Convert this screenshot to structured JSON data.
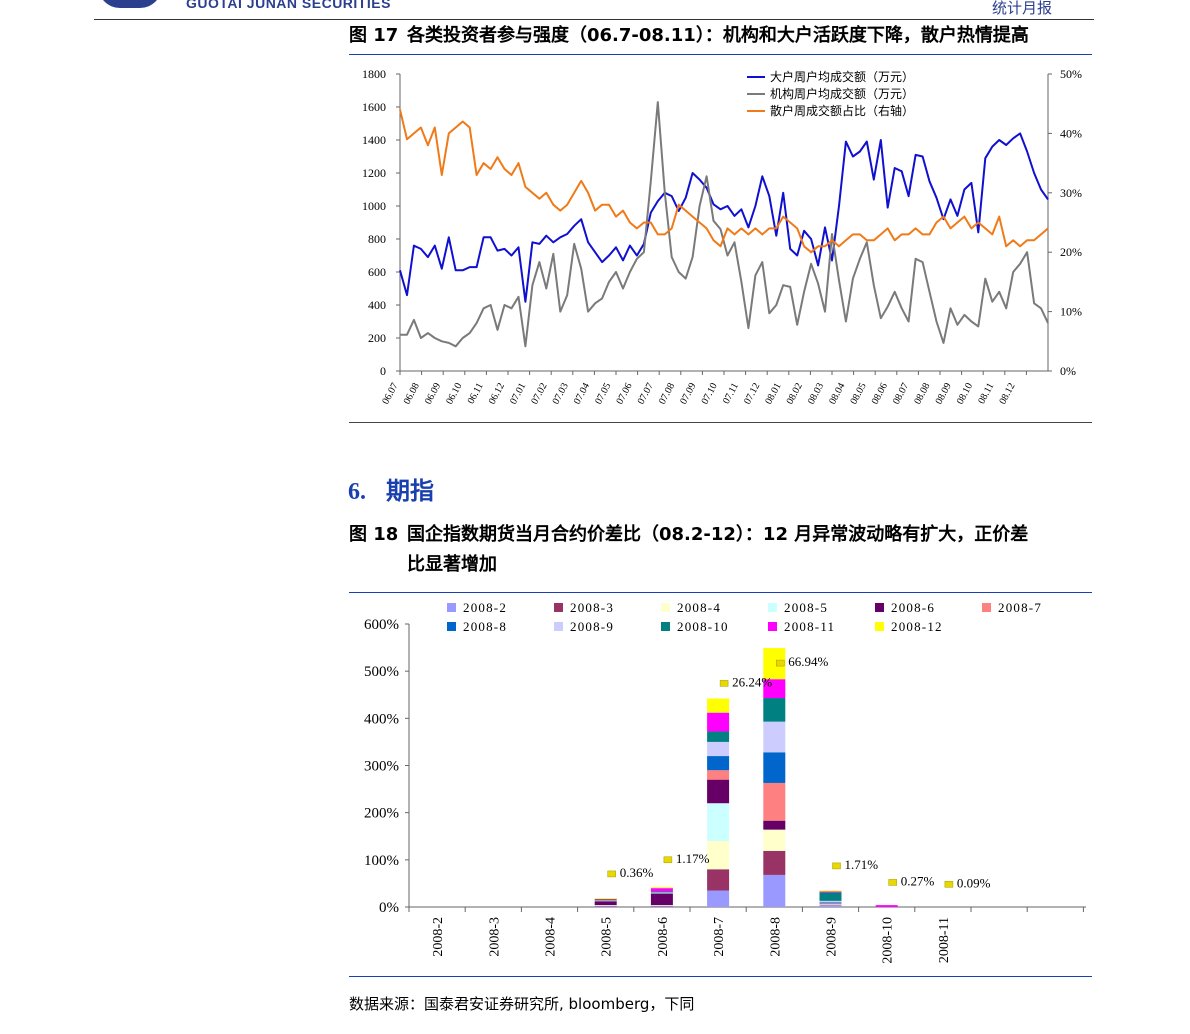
{
  "header": {
    "brand": "GUOTAI JUNAN SECURITIES",
    "report_type": "统计月报",
    "brand_color": "#2b3f8f"
  },
  "figure17": {
    "label": "图 17",
    "title": "各类投资者参与强度（06.7-08.11）：机构和大户活跃度下降，散户热情提高"
  },
  "section": {
    "number": "6.",
    "title": "期指",
    "color": "#1a3fae"
  },
  "figure18": {
    "label": "图 18",
    "title_line1": "国企指数期货当月合约价差比（08.2-12）：12 月异常波动略有扩大，正价差",
    "title_line2": "比显著增加"
  },
  "source": "数据来源：国泰君安证券研究所, bloomberg，下同",
  "chart_data": [
    {
      "type": "line",
      "ylim": [
        0,
        1800
      ],
      "y_ticks": [
        "0",
        "200",
        "400",
        "600",
        "800",
        "1000",
        "1200",
        "1400",
        "1600",
        "1800"
      ],
      "y2lim": [
        0,
        50
      ],
      "y2_ticks": [
        "0%",
        "10%",
        "20%",
        "30%",
        "40%",
        "50%"
      ],
      "x_ticks": [
        "06.07",
        "06.08",
        "06.09",
        "06.10",
        "06.11",
        "06.12",
        "07.01",
        "07.02",
        "07.03",
        "07.04",
        "07.05",
        "07.06",
        "07.07",
        "07.08",
        "07.09",
        "07.10",
        "07.11",
        "07.12",
        "08.01",
        "08.02",
        "08.03",
        "08.04",
        "08.05",
        "08.06",
        "08.07",
        "08.08",
        "08.09",
        "08.10",
        "08.11",
        "08.12"
      ],
      "legend_position": "top",
      "series": [
        {
          "name": "大户周户均成交额（万元）",
          "axis": "left",
          "color": "#1010d0",
          "values": [
            610,
            460,
            760,
            740,
            690,
            760,
            620,
            810,
            610,
            610,
            630,
            630,
            810,
            810,
            730,
            740,
            700,
            750,
            420,
            780,
            770,
            820,
            780,
            810,
            830,
            880,
            920,
            780,
            720,
            660,
            700,
            750,
            670,
            760,
            700,
            770,
            960,
            1030,
            1080,
            1060,
            970,
            1050,
            1200,
            1160,
            1110,
            1010,
            980,
            1000,
            940,
            980,
            870,
            1000,
            1180,
            1060,
            820,
            1080,
            740,
            700,
            850,
            800,
            640,
            870,
            670,
            1000,
            1390,
            1300,
            1330,
            1390,
            1160,
            1400,
            990,
            1230,
            1210,
            1060,
            1310,
            1300,
            1150,
            1050,
            920,
            1040,
            940,
            1100,
            1140,
            840,
            1290,
            1360,
            1400,
            1370,
            1410,
            1440,
            1330,
            1200,
            1100,
            1040
          ]
        },
        {
          "name": "机构周户均成交额（万元）",
          "axis": "left",
          "color": "#7a7a7a",
          "values": [
            220,
            220,
            310,
            200,
            230,
            200,
            180,
            170,
            150,
            200,
            230,
            290,
            380,
            400,
            250,
            400,
            380,
            450,
            150,
            520,
            660,
            500,
            710,
            360,
            460,
            770,
            620,
            360,
            410,
            440,
            540,
            600,
            500,
            600,
            680,
            720,
            1150,
            1630,
            1080,
            690,
            600,
            560,
            690,
            1000,
            1180,
            910,
            860,
            700,
            780,
            540,
            260,
            580,
            660,
            350,
            400,
            520,
            510,
            280,
            480,
            650,
            530,
            360,
            830,
            550,
            300,
            560,
            680,
            780,
            520,
            320,
            390,
            480,
            380,
            300,
            680,
            660,
            480,
            300,
            170,
            380,
            280,
            340,
            300,
            270,
            560,
            420,
            480,
            380,
            600,
            650,
            720,
            410,
            380,
            290
          ]
        },
        {
          "name": "散户周成交额占比（右轴）",
          "axis": "right",
          "color": "#f07a18",
          "values": [
            44,
            39,
            40,
            41,
            38,
            41,
            33,
            40,
            41,
            42,
            41,
            33,
            35,
            34,
            36,
            34,
            33,
            35,
            31,
            30,
            29,
            30,
            28,
            27,
            28,
            30,
            32,
            30,
            27,
            28,
            28,
            26,
            27,
            25,
            24,
            25,
            25,
            23,
            23,
            24,
            28,
            27,
            26,
            25,
            24,
            22,
            21,
            24,
            23,
            24,
            23,
            24,
            23,
            24,
            24,
            26,
            25,
            24,
            21,
            20,
            21,
            21,
            22,
            21,
            22,
            23,
            23,
            22,
            22,
            23,
            24,
            22,
            23,
            23,
            24,
            23,
            23,
            25,
            26,
            24,
            25,
            26,
            24,
            25,
            24,
            23,
            26,
            21,
            22,
            21,
            22,
            22,
            23,
            24
          ]
        }
      ]
    },
    {
      "type": "bar",
      "stacked": true,
      "ylim": [
        0,
        6
      ],
      "y_ticks": [
        "0%",
        "100%",
        "200%",
        "300%",
        "400%",
        "500%",
        "600%"
      ],
      "categories": [
        "2008-2",
        "2008-3",
        "2008-4",
        "2008-5",
        "2008-6",
        "2008-7",
        "2008-8",
        "2008-9",
        "2008-10",
        "2008-11"
      ],
      "legend_position": "top",
      "series": [
        {
          "name": "2008-2",
          "color": "#9999ff",
          "values": [
            0,
            0,
            0,
            0.01,
            0.01,
            0.35,
            0.68,
            0.03,
            0,
            0
          ]
        },
        {
          "name": "2008-3",
          "color": "#993366",
          "values": [
            0,
            0,
            0,
            0.01,
            0.01,
            0.45,
            0.51,
            0.01,
            0,
            0
          ]
        },
        {
          "name": "2008-4",
          "color": "#ffffcc",
          "values": [
            0,
            0,
            0,
            0.01,
            0.01,
            0.6,
            0.45,
            0.01,
            0,
            0
          ]
        },
        {
          "name": "2008-5",
          "color": "#ccffff",
          "values": [
            0,
            0,
            0,
            0.01,
            0.01,
            0.8,
            0.0,
            0.01,
            0,
            0
          ]
        },
        {
          "name": "2008-6",
          "color": "#660066",
          "values": [
            0,
            0,
            0,
            0.08,
            0.24,
            0.5,
            0.19,
            0.01,
            0,
            0
          ]
        },
        {
          "name": "2008-7",
          "color": "#ff8080",
          "values": [
            0,
            0,
            0,
            0.01,
            0.01,
            0.2,
            0.8,
            0.01,
            0,
            0
          ]
        },
        {
          "name": "2008-8",
          "color": "#0066cc",
          "values": [
            0,
            0,
            0,
            0.01,
            0.01,
            0.3,
            0.65,
            0.02,
            0,
            0
          ]
        },
        {
          "name": "2008-9",
          "color": "#ccccff",
          "values": [
            0,
            0,
            0,
            0.01,
            0.01,
            0.3,
            0.65,
            0.03,
            0,
            0
          ]
        },
        {
          "name": "2008-10",
          "color": "#008080",
          "values": [
            0,
            0,
            0,
            0.01,
            0.02,
            0.22,
            0.5,
            0.18,
            0,
            0
          ]
        },
        {
          "name": "2008-11",
          "color": "#ff00ff",
          "values": [
            0,
            0,
            0,
            0.01,
            0.07,
            0.4,
            0.4,
            0.02,
            0.04,
            0
          ]
        },
        {
          "name": "2008-12",
          "color": "#ffff00",
          "values": [
            0,
            0,
            0,
            0.02,
            0.02,
            0.3,
            0.66,
            0.02,
            0,
            0
          ]
        }
      ],
      "annotations": [
        {
          "category": "2008-5",
          "label": "0.36%",
          "y_value": 0.68
        },
        {
          "category": "2008-6",
          "label": "1.17%",
          "y_value": 0.98
        },
        {
          "category": "2008-7",
          "label": "26.24%",
          "y_value": 4.72
        },
        {
          "category": "2008-8",
          "label": "66.94%",
          "y_value": 5.15
        },
        {
          "category": "2008-9",
          "label": "1.71%",
          "y_value": 0.85
        },
        {
          "category": "2008-10",
          "label": "0.27%",
          "y_value": 0.5
        },
        {
          "category": "2008-11",
          "label": "0.09%",
          "y_value": 0.46
        }
      ]
    }
  ]
}
